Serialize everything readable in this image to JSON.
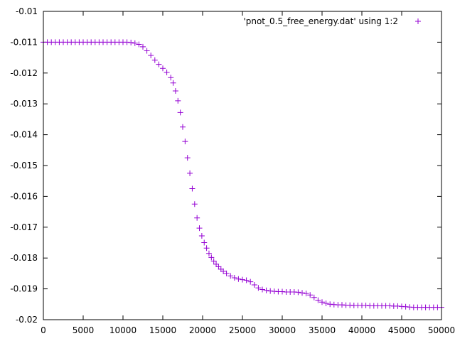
{
  "chart_data": {
    "type": "scatter",
    "title": "",
    "xlabel": "",
    "ylabel": "",
    "xlim": [
      0,
      50000
    ],
    "ylim": [
      -0.02,
      -0.01
    ],
    "grid": false,
    "legend_position": "top-right",
    "marker": "plus",
    "x_ticks": [
      {
        "value": 0,
        "label": "0"
      },
      {
        "value": 5000,
        "label": "5000"
      },
      {
        "value": 10000,
        "label": "10000"
      },
      {
        "value": 15000,
        "label": "15000"
      },
      {
        "value": 20000,
        "label": "20000"
      },
      {
        "value": 25000,
        "label": "25000"
      },
      {
        "value": 30000,
        "label": "30000"
      },
      {
        "value": 35000,
        "label": "35000"
      },
      {
        "value": 40000,
        "label": "40000"
      },
      {
        "value": 45000,
        "label": "45000"
      },
      {
        "value": 50000,
        "label": "50000"
      }
    ],
    "y_ticks": [
      {
        "value": -0.01,
        "label": "-0.01"
      },
      {
        "value": -0.011,
        "label": "-0.011"
      },
      {
        "value": -0.012,
        "label": "-0.012"
      },
      {
        "value": -0.013,
        "label": "-0.013"
      },
      {
        "value": -0.014,
        "label": "-0.014"
      },
      {
        "value": -0.015,
        "label": "-0.015"
      },
      {
        "value": -0.016,
        "label": "-0.016"
      },
      {
        "value": -0.017,
        "label": "-0.017"
      },
      {
        "value": -0.018,
        "label": "-0.018"
      },
      {
        "value": -0.019,
        "label": "-0.019"
      },
      {
        "value": -0.02,
        "label": "-0.02"
      }
    ],
    "series": [
      {
        "name": "'pnot_0.5_free_energy.dat' using 1:2",
        "color": "#9400d3",
        "x": [
          0,
          500,
          1000,
          1500,
          2000,
          2500,
          3000,
          3500,
          4000,
          4500,
          5000,
          5500,
          6000,
          6500,
          7000,
          7500,
          8000,
          8500,
          9000,
          9500,
          10000,
          10500,
          11000,
          11500,
          12000,
          12500,
          13000,
          13500,
          14000,
          14500,
          15000,
          15500,
          16000,
          16300,
          16600,
          16900,
          17200,
          17500,
          17800,
          18100,
          18400,
          18700,
          19000,
          19300,
          19600,
          19900,
          20200,
          20500,
          20800,
          21100,
          21400,
          21700,
          22000,
          22300,
          22600,
          23000,
          23500,
          24000,
          24500,
          25000,
          25500,
          26000,
          26500,
          27000,
          27500,
          28000,
          28500,
          29000,
          29500,
          30000,
          30500,
          31000,
          31500,
          32000,
          32500,
          33000,
          33500,
          34000,
          34500,
          35000,
          35500,
          36000,
          36500,
          37000,
          37500,
          38000,
          38500,
          39000,
          39500,
          40000,
          40500,
          41000,
          41500,
          42000,
          42500,
          43000,
          43500,
          44000,
          44500,
          45000,
          45500,
          46000,
          46500,
          47000,
          47500,
          48000,
          48500,
          49000,
          49500,
          50000
        ],
        "y": [
          -0.011,
          -0.011,
          -0.011,
          -0.011,
          -0.011,
          -0.011,
          -0.011,
          -0.011,
          -0.011,
          -0.011,
          -0.011,
          -0.011,
          -0.011,
          -0.011,
          -0.011,
          -0.011,
          -0.011,
          -0.011,
          -0.011,
          -0.011,
          -0.011,
          -0.011,
          -0.01101,
          -0.01103,
          -0.01107,
          -0.01115,
          -0.01128,
          -0.01143,
          -0.01158,
          -0.01172,
          -0.01185,
          -0.01198,
          -0.01215,
          -0.01232,
          -0.01258,
          -0.0129,
          -0.01328,
          -0.01375,
          -0.01422,
          -0.01475,
          -0.01525,
          -0.01575,
          -0.01625,
          -0.0167,
          -0.01703,
          -0.01728,
          -0.0175,
          -0.01768,
          -0.01785,
          -0.01798,
          -0.0181,
          -0.0182,
          -0.01828,
          -0.01836,
          -0.01843,
          -0.0185,
          -0.01858,
          -0.01864,
          -0.01868,
          -0.0187,
          -0.01872,
          -0.01877,
          -0.01887,
          -0.01897,
          -0.01902,
          -0.01905,
          -0.01907,
          -0.01908,
          -0.01909,
          -0.01909,
          -0.0191,
          -0.0191,
          -0.0191,
          -0.01911,
          -0.01913,
          -0.01915,
          -0.0192,
          -0.01928,
          -0.01937,
          -0.01943,
          -0.01947,
          -0.0195,
          -0.01951,
          -0.01952,
          -0.01952,
          -0.01953,
          -0.01953,
          -0.01954,
          -0.01954,
          -0.01954,
          -0.01954,
          -0.01955,
          -0.01955,
          -0.01955,
          -0.01955,
          -0.01955,
          -0.01955,
          -0.01956,
          -0.01956,
          -0.01957,
          -0.01958,
          -0.01959,
          -0.0196,
          -0.0196,
          -0.0196,
          -0.0196,
          -0.0196,
          -0.0196,
          -0.0196,
          -0.0196
        ]
      }
    ]
  }
}
